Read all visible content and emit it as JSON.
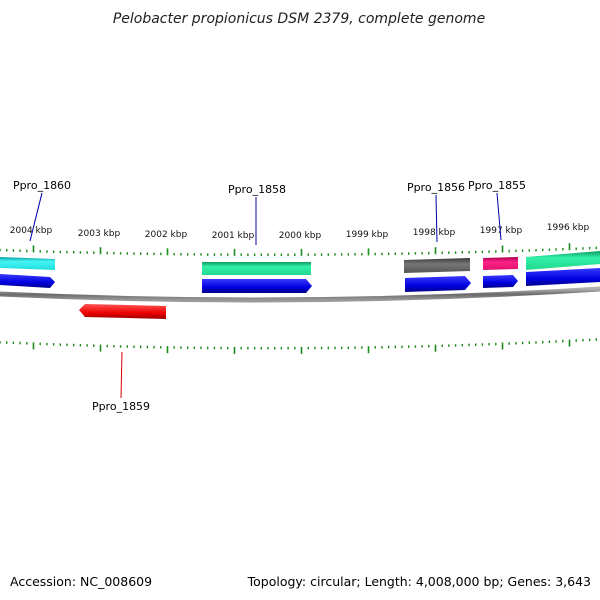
{
  "title": "Pelobacter propionicus DSM 2379, complete genome",
  "accession": "Accession: NC_008609",
  "summary": "Topology: circular; Length: 4,008,000 bp; Genes: 3,643",
  "kbp_labels": [
    "2004 kbp",
    "2003 kbp",
    "2002 kbp",
    "2001 kbp",
    "2000 kbp",
    "1999 kbp",
    "1998 kbp",
    "1997 kbp",
    "1996 kbp"
  ],
  "genes": [
    {
      "name": "Ppro_1860",
      "color": "#0000aa"
    },
    {
      "name": "Ppro_1858",
      "color": "#0000aa"
    },
    {
      "name": "Ppro_1856",
      "color": "#0000aa"
    },
    {
      "name": "Ppro_1855",
      "color": "#0000aa"
    },
    {
      "name": "Ppro_1859",
      "color": "#dd0000"
    }
  ],
  "colors": {
    "backbone": "#808080",
    "tick": "#1a8a1a",
    "cds_forward": "#0000ee",
    "cds_reverse": "#ee0000",
    "cyan": "#22e5e5",
    "teal": "#22ee99",
    "gray": "#707070",
    "pink": "#ee1177"
  }
}
